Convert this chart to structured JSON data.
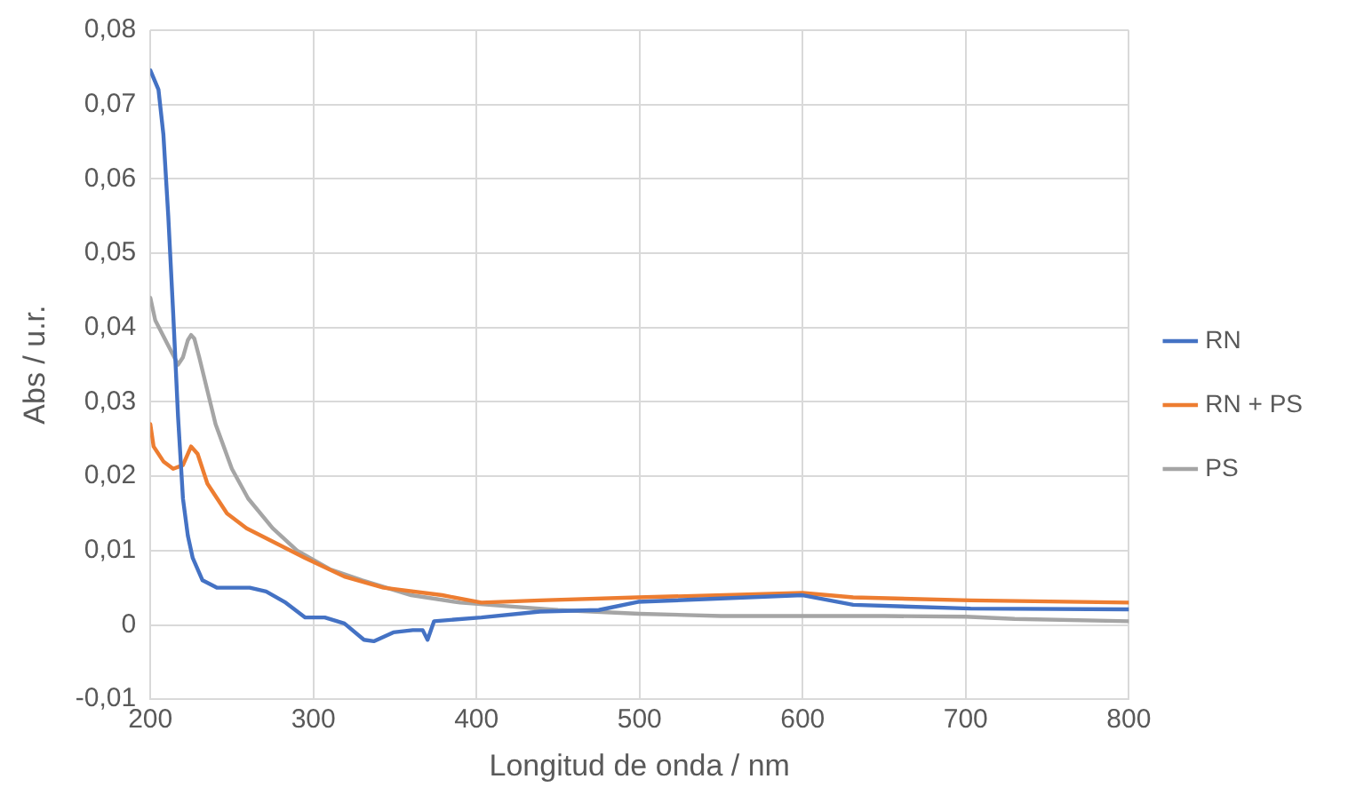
{
  "chart_data": {
    "type": "line",
    "xlabel": "Longitud de onda / nm",
    "ylabel": "Abs / u.r.",
    "xlim": [
      200,
      800
    ],
    "xticks": [
      200,
      300,
      400,
      500,
      600,
      700,
      800
    ],
    "ylim": [
      -0.01,
      0.08
    ],
    "yticks": [
      {
        "value": -0.01,
        "label": "-0,01"
      },
      {
        "value": 0,
        "label": "0"
      },
      {
        "value": 0.01,
        "label": "0,01"
      },
      {
        "value": 0.02,
        "label": "0,02"
      },
      {
        "value": 0.03,
        "label": "0,03"
      },
      {
        "value": 0.04,
        "label": "0,04"
      },
      {
        "value": 0.05,
        "label": "0,05"
      },
      {
        "value": 0.06,
        "label": "0,06"
      },
      {
        "value": 0.07,
        "label": "0,07"
      },
      {
        "value": 0.08,
        "label": "0,08"
      }
    ],
    "grid": true,
    "legend": "right",
    "marker": "none",
    "line_style": "solid",
    "series": [
      {
        "name": "RN",
        "color": "#4472c4",
        "x": [
          200,
          205,
          208,
          211,
          214,
          217,
          220,
          223,
          226,
          232,
          241,
          261,
          271,
          283,
          295,
          307,
          319,
          331,
          337,
          349,
          361,
          367,
          370,
          374,
          403,
          439,
          475,
          499,
          600,
          631,
          703,
          800
        ],
        "values": [
          0.0746,
          0.072,
          0.066,
          0.055,
          0.042,
          0.028,
          0.017,
          0.012,
          0.009,
          0.006,
          0.005,
          0.005,
          0.0045,
          0.003,
          0.001,
          0.001,
          0.0002,
          -0.002,
          -0.0022,
          -0.001,
          -0.0007,
          -0.0007,
          -0.002,
          0.0005,
          0.001,
          0.0018,
          0.002,
          0.0031,
          0.004,
          0.0027,
          0.0022,
          0.0021
        ]
      },
      {
        "name": "RN + PS",
        "color": "#ed7d31",
        "x": [
          200,
          202,
          208,
          214,
          220,
          225,
          229,
          235,
          247,
          259,
          277,
          295,
          319,
          343,
          379,
          403,
          439,
          499,
          600,
          631,
          703,
          800
        ],
        "values": [
          0.027,
          0.024,
          0.022,
          0.021,
          0.0215,
          0.024,
          0.023,
          0.019,
          0.015,
          0.013,
          0.011,
          0.009,
          0.0065,
          0.005,
          0.004,
          0.003,
          0.0033,
          0.0037,
          0.0043,
          0.0037,
          0.0033,
          0.003
        ]
      },
      {
        "name": "PS",
        "color": "#a5a5a5",
        "x": [
          200,
          203,
          210,
          217,
          220,
          223,
          225,
          227,
          230,
          240,
          250,
          260,
          275,
          290,
          310,
          330,
          360,
          390,
          420,
          450,
          500,
          550,
          600,
          650,
          700,
          730,
          800
        ],
        "values": [
          0.044,
          0.041,
          0.038,
          0.035,
          0.036,
          0.0383,
          0.039,
          0.0385,
          0.036,
          0.027,
          0.021,
          0.017,
          0.013,
          0.01,
          0.0075,
          0.006,
          0.004,
          0.003,
          0.0025,
          0.002,
          0.0015,
          0.0012,
          0.0012,
          0.0012,
          0.0011,
          0.0008,
          0.0005
        ]
      }
    ]
  }
}
